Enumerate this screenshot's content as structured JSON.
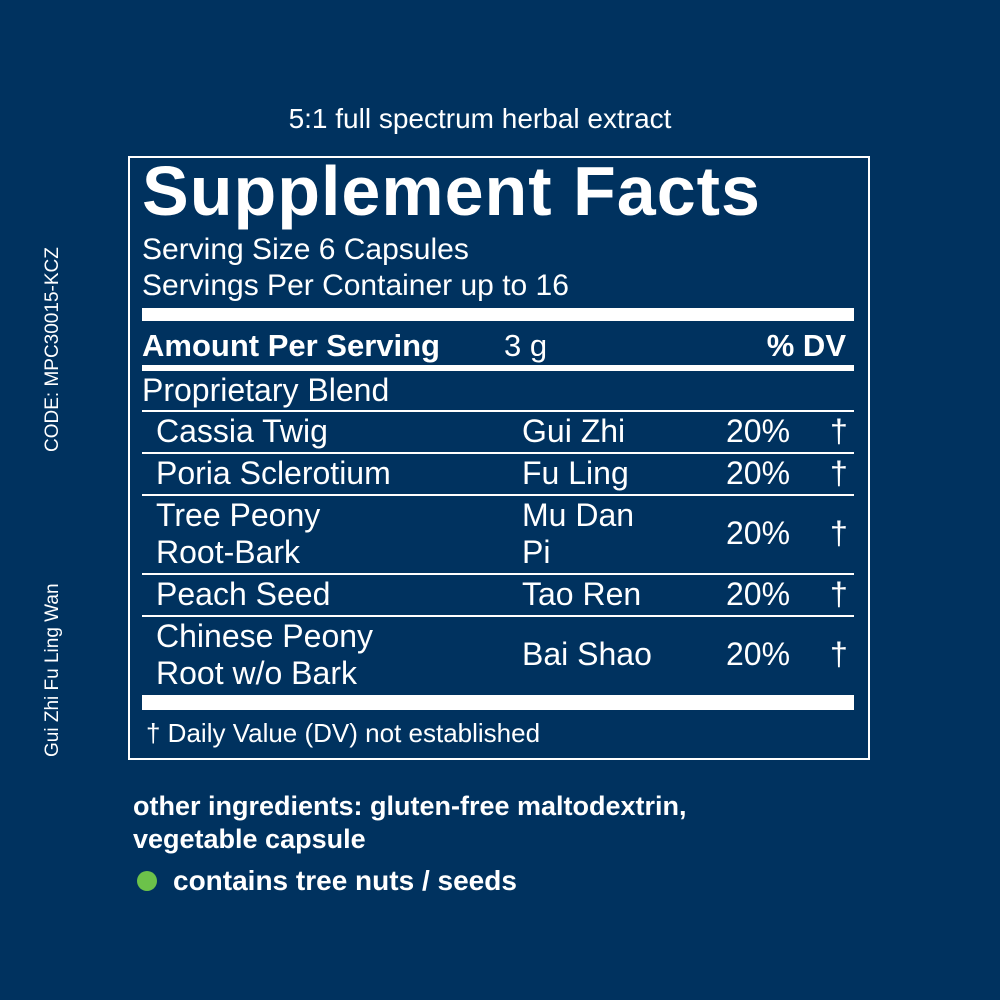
{
  "tagline": "5:1 full spectrum herbal extract",
  "side": {
    "code": "CODE: MPC30015-KCZ",
    "product_name": "Gui Zhi Fu Ling Wan"
  },
  "facts": {
    "title": "Supplement Facts",
    "serving_size": "Serving Size 6 Capsules",
    "servings_per_container": "Servings Per Container up to 16",
    "amount_per_serving_label": "Amount Per Serving",
    "amount": "3 g",
    "dv_header": "% DV",
    "blend_label": "Proprietary Blend",
    "ingredients": [
      {
        "name": "Cassia Twig",
        "pinyin": "Gui Zhi",
        "dv": "20%",
        "mark": "†"
      },
      {
        "name": "Poria Sclerotium",
        "pinyin": "Fu Ling",
        "dv": "20%",
        "mark": "†"
      },
      {
        "name": "Tree Peony\nRoot-Bark",
        "pinyin": "Mu Dan\nPi",
        "dv": "20%",
        "mark": "†"
      },
      {
        "name": "Peach Seed",
        "pinyin": "Tao Ren",
        "dv": "20%",
        "mark": "†"
      },
      {
        "name": "Chinese Peony\nRoot w/o Bark",
        "pinyin": "Bai Shao",
        "dv": "20%",
        "mark": "†"
      }
    ],
    "footnote": "† Daily Value (DV) not established"
  },
  "other_ingredients": "other ingredients: gluten-free maltodextrin,\nvegetable capsule",
  "allergen": {
    "text": "contains tree nuts / seeds",
    "dot_color": "#6cc24a"
  },
  "colors": {
    "background": "#00325f",
    "foreground": "#ffffff"
  }
}
